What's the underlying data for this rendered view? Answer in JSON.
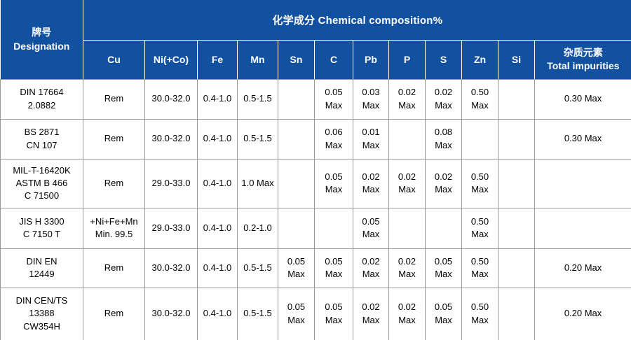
{
  "table": {
    "title_designation": "牌号\nDesignation",
    "title_composition": "化学成分 Chemical composition%",
    "columns": [
      "Cu",
      "Ni(+Co)",
      "Fe",
      "Mn",
      "Sn",
      "C",
      "Pb",
      "P",
      "S",
      "Zn",
      "Si",
      "杂质元素\nTotal impurities"
    ],
    "rows": [
      {
        "designation": "DIN 17664\n2.0882",
        "cells": [
          "Rem",
          "30.0-32.0",
          "0.4-1.0",
          "0.5-1.5",
          "",
          "0.05\nMax",
          "0.03\nMax",
          "0.02\nMax",
          "0.02\nMax",
          "0.50\nMax",
          "",
          "0.30 Max"
        ]
      },
      {
        "designation": "BS 2871\nCN 107",
        "cells": [
          "Rem",
          "30.0-32.0",
          "0.4-1.0",
          "0.5-1.5",
          "",
          "0.06\nMax",
          "0.01\nMax",
          "",
          "0.08\nMax",
          "",
          "",
          "0.30 Max"
        ]
      },
      {
        "designation": "MIL-T-16420K\nASTM B 466\nC 71500",
        "cells": [
          "Rem",
          "29.0-33.0",
          "0.4-1.0",
          "1.0 Max",
          "",
          "0.05\nMax",
          "0.02\nMax",
          "0.02\nMax",
          "0.02\nMax",
          "0.50\nMax",
          "",
          ""
        ]
      },
      {
        "designation": "JIS H 3300\nC 7150 T",
        "cells": [
          "+Ni+Fe+Mn\nMin. 99.5",
          "29.0-33.0",
          "0.4-1.0",
          "0.2-1.0",
          "",
          "",
          "0.05\nMax",
          "",
          "",
          "0.50\nMax",
          "",
          ""
        ]
      },
      {
        "designation": "DIN EN\n12449",
        "cells": [
          "Rem",
          "30.0-32.0",
          "0.4-1.0",
          "0.5-1.5",
          "0.05\nMax",
          "0.05\nMax",
          "0.02\nMax",
          "0.02\nMax",
          "0.05\nMax",
          "0.50\nMax",
          "",
          "0.20 Max"
        ]
      },
      {
        "designation": "DIN CEN/TS\n13388\nCW354H",
        "cells": [
          "Rem",
          "30.0-32.0",
          "0.4-1.0",
          "0.5-1.5",
          "0.05\nMax",
          "0.05\nMax",
          "0.02\nMax",
          "0.02\nMax",
          "0.05\nMax",
          "0.50\nMax",
          "",
          "0.20 Max"
        ]
      }
    ],
    "colors": {
      "header_bg": "#11519f",
      "header_text": "#ffffff",
      "header_grid": "#ffffff",
      "grid": "#999999",
      "body_bg": "#ffffff",
      "body_text": "#000000"
    }
  }
}
